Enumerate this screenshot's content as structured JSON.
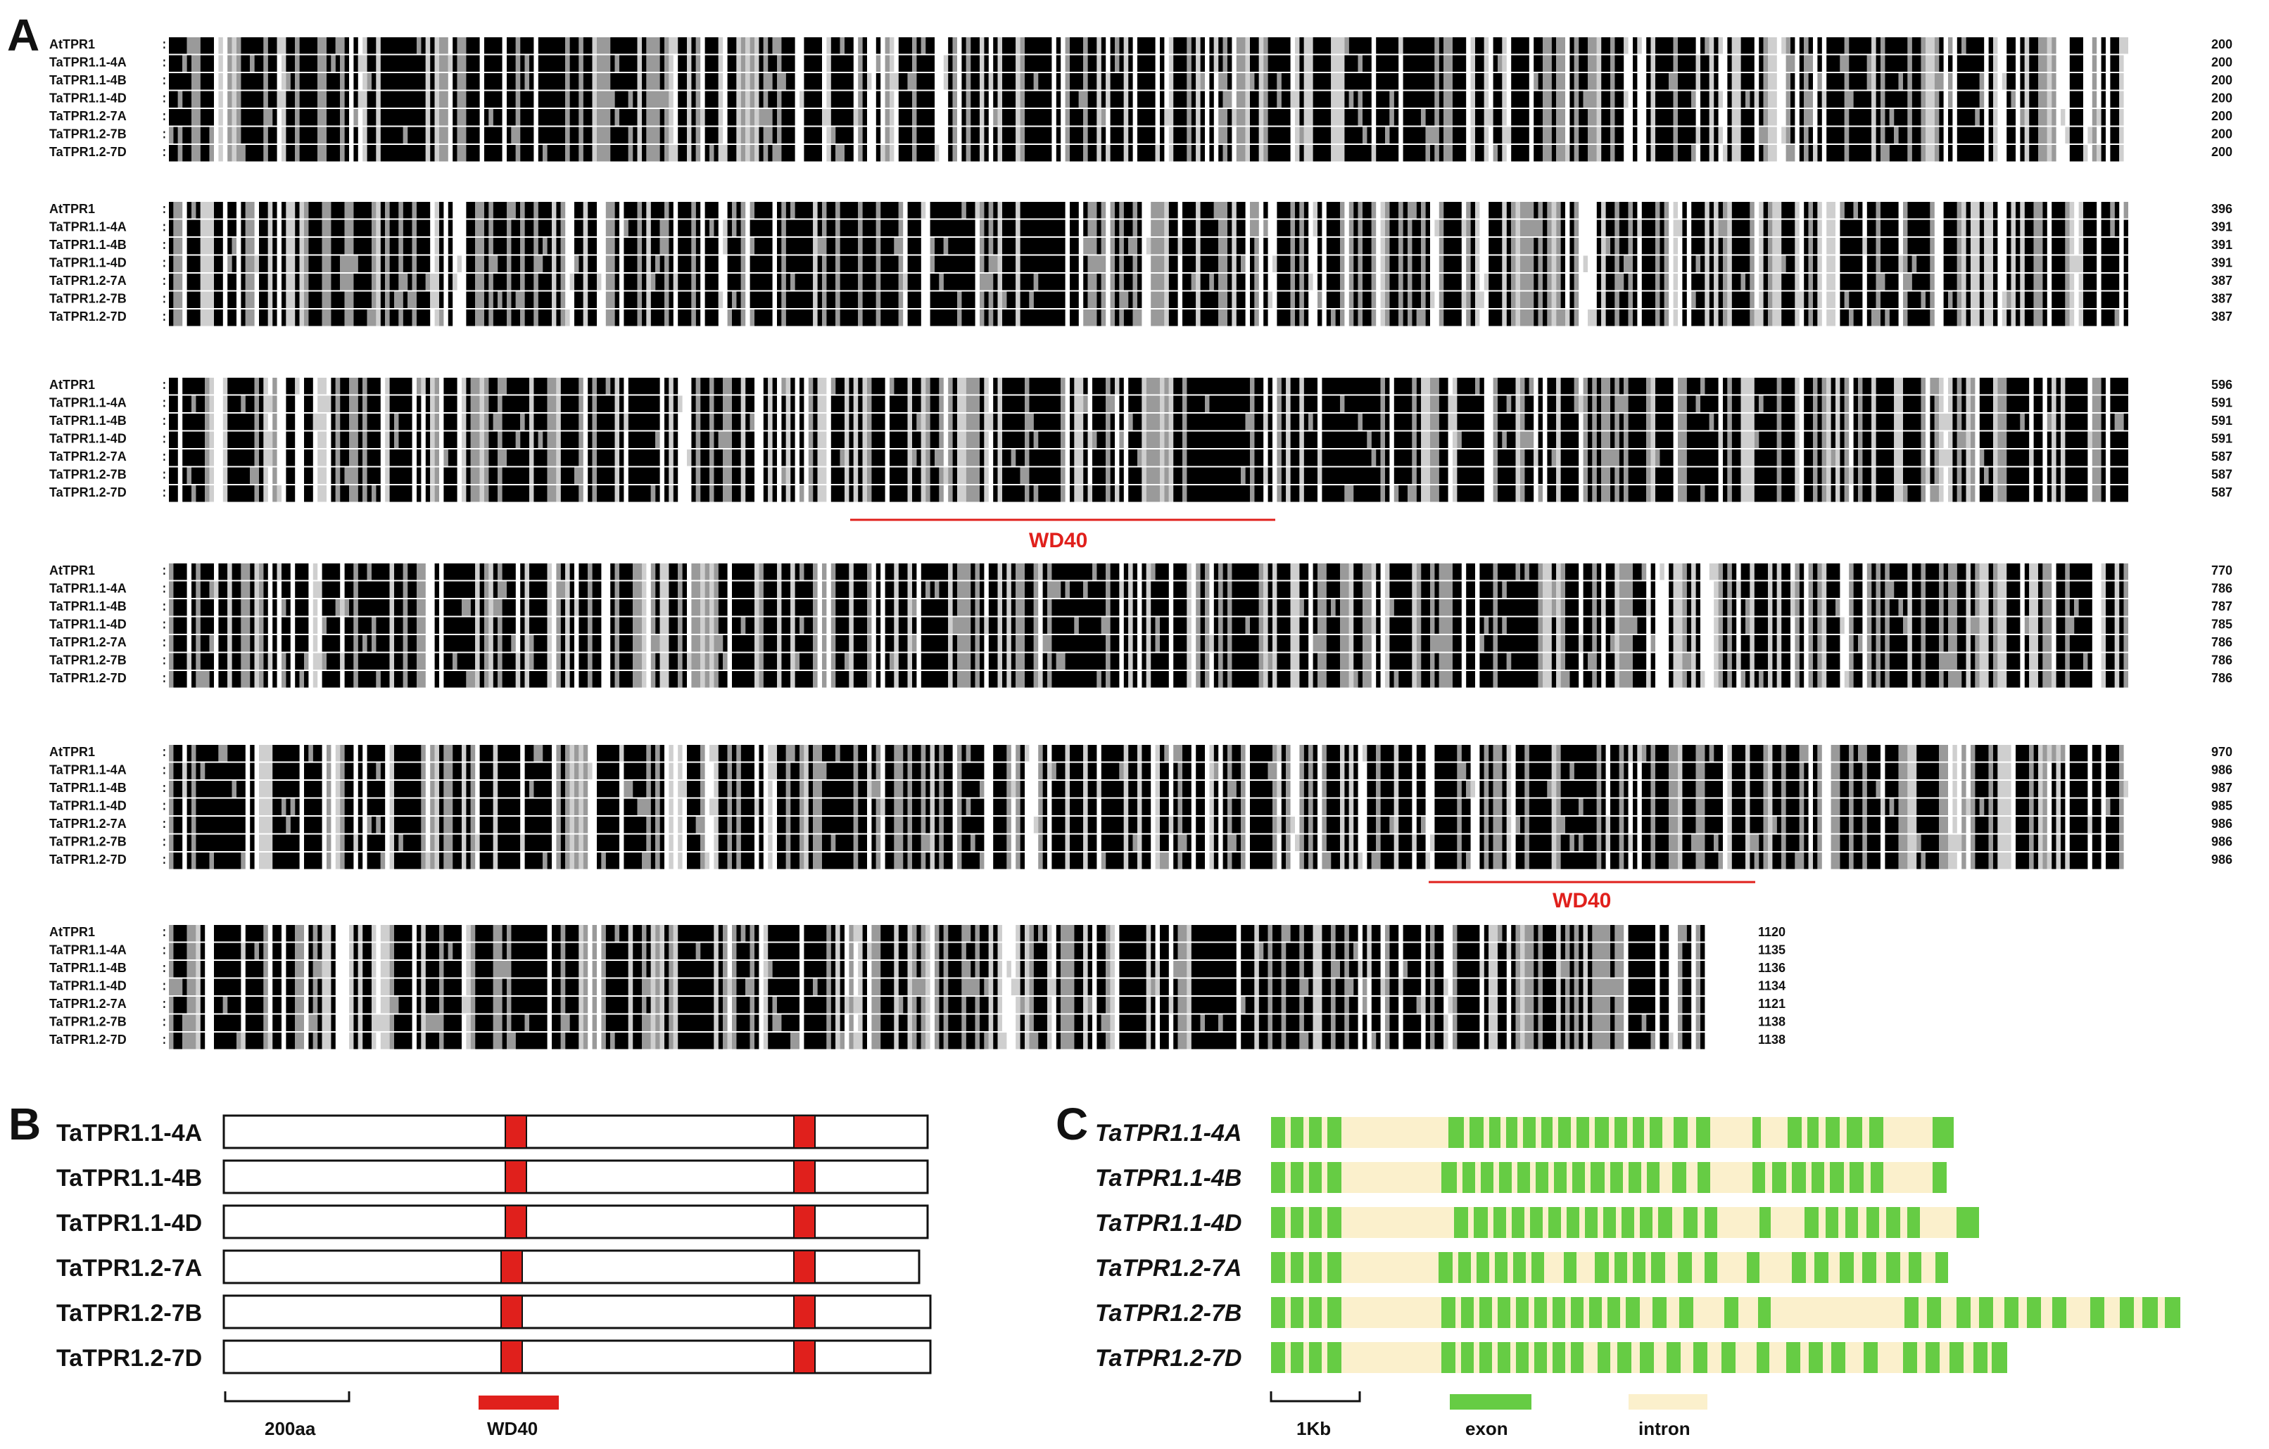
{
  "panel_a": {
    "letter": "A",
    "sequence_names": [
      "AtTPR1",
      "TaTPR1.1-4A",
      "TaTPR1.1-4B",
      "TaTPR1.1-4D",
      "TaTPR1.2-7A",
      "TaTPR1.2-7B",
      "TaTPR1.2-7D"
    ],
    "blocks": [
      {
        "end_positions": [
          "200",
          "200",
          "200",
          "200",
          "200",
          "200",
          "200"
        ],
        "wd40_label": ""
      },
      {
        "end_positions": [
          "396",
          "391",
          "391",
          "391",
          "387",
          "387",
          "387"
        ],
        "wd40_label": ""
      },
      {
        "end_positions": [
          "596",
          "591",
          "591",
          "591",
          "587",
          "587",
          "587"
        ],
        "wd40_label": "WD40"
      },
      {
        "end_positions": [
          "770",
          "786",
          "787",
          "785",
          "786",
          "786",
          "786"
        ],
        "wd40_label": ""
      },
      {
        "end_positions": [
          "970",
          "986",
          "987",
          "985",
          "986",
          "986",
          "986"
        ],
        "wd40_label": "WD40"
      },
      {
        "end_positions": [
          "1120",
          "1135",
          "1136",
          "1134",
          "1121",
          "1138",
          "1138"
        ],
        "wd40_label": ""
      }
    ],
    "shading_colors": {
      "identical": "#000000",
      "similar": "#9a9a9a",
      "weak": "#cfcfcf"
    }
  },
  "panel_b": {
    "letter": "B",
    "genes": [
      "TaTPR1.1-4A",
      "TaTPR1.1-4B",
      "TaTPR1.1-4D",
      "TaTPR1.2-7A",
      "TaTPR1.2-7B",
      "TaTPR1.2-7D"
    ],
    "scale_label": "200aa",
    "legend_label": "WD40",
    "domain_color": "#e0201c"
  },
  "panel_c": {
    "letter": "C",
    "genes": [
      "TaTPR1.1-4A",
      "TaTPR1.1-4B",
      "TaTPR1.1-4D",
      "TaTPR1.2-7A",
      "TaTPR1.2-7B",
      "TaTPR1.2-7D"
    ],
    "scale_label": "1Kb",
    "exon_label": "exon",
    "intron_label": "intron",
    "exon_color": "#66cc44",
    "intron_color": "#fbf0cc"
  }
}
